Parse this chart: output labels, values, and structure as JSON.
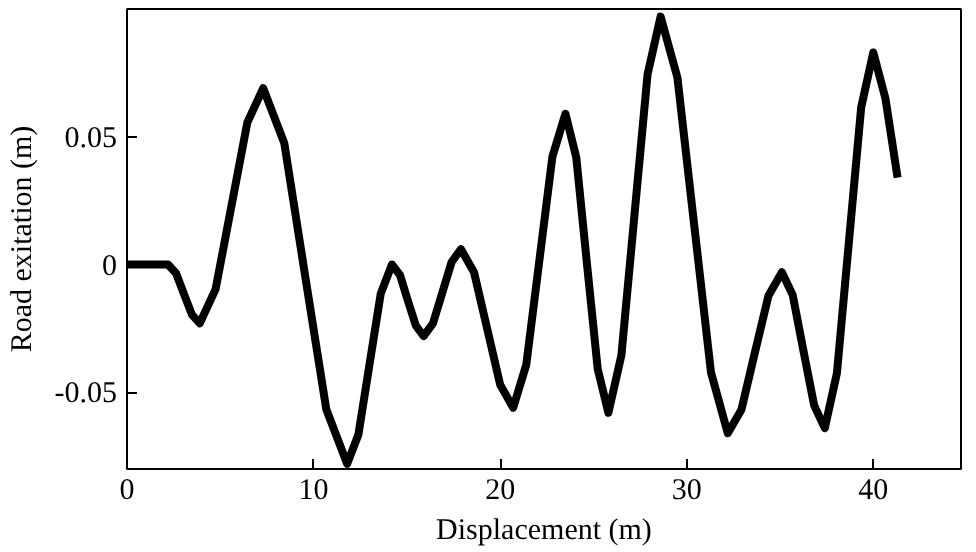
{
  "chart_data": {
    "type": "line",
    "xlabel": "Displacement (m)",
    "ylabel": "Road exitation (m)",
    "xlim": [
      0,
      44.7
    ],
    "ylim": [
      -0.08,
      0.1
    ],
    "xticks": [
      0,
      10,
      20,
      30,
      40
    ],
    "yticks": [
      {
        "value": -0.05,
        "label": "-0.05"
      },
      0,
      0.05
    ],
    "grid": false,
    "marker": "none",
    "line_style": "solid",
    "series": [
      {
        "color": "#000000",
        "x": [
          0,
          2.2,
          2.63,
          3.05,
          3.48,
          3.9,
          4.75,
          5.6,
          6.45,
          7.3,
          8.43,
          9.55,
          10.68,
          11.8,
          12.4,
          13.0,
          13.6,
          14.2,
          14.63,
          15.05,
          15.48,
          15.9,
          16.4,
          16.9,
          17.4,
          17.9,
          18.6,
          19.3,
          20.0,
          20.7,
          21.4,
          22.1,
          22.8,
          23.5,
          24.08,
          24.65,
          25.23,
          25.8,
          26.5,
          27.2,
          27.9,
          28.6,
          29.5,
          30.4,
          31.3,
          32.2,
          32.93,
          33.65,
          34.38,
          35.1,
          35.68,
          36.25,
          36.83,
          37.4,
          38.05,
          38.7,
          39.35,
          40.0,
          40.65,
          41.3
        ],
        "values": [
          0,
          0,
          -0.0034,
          -0.0115,
          -0.0196,
          -0.023,
          -0.0096,
          0.023,
          0.0556,
          0.069,
          0.0475,
          -0.0045,
          -0.0566,
          -0.078,
          -0.0666,
          -0.039,
          -0.0114,
          0.0,
          -0.0041,
          -0.014,
          -0.0239,
          -0.028,
          -0.023,
          -0.011,
          0.001,
          0.006,
          -0.003,
          -0.025,
          -0.047,
          -0.056,
          -0.0392,
          0.0015,
          0.0422,
          0.059,
          0.0419,
          0.0005,
          -0.0409,
          -0.058,
          -0.0354,
          0.0195,
          0.0744,
          0.097,
          0.0732,
          0.0155,
          -0.0422,
          -0.066,
          -0.0568,
          -0.0345,
          -0.0122,
          -0.003,
          -0.0119,
          -0.0335,
          -0.0551,
          -0.064,
          -0.0425,
          0.0095,
          0.0615,
          0.083,
          0.065,
          0.034
        ]
      }
    ]
  }
}
